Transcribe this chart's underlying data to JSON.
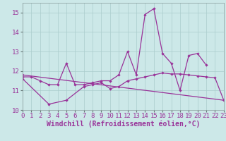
{
  "x": [
    0,
    1,
    2,
    3,
    4,
    5,
    6,
    7,
    8,
    9,
    10,
    11,
    12,
    13,
    14,
    15,
    16,
    17,
    18,
    19,
    20,
    21,
    22,
    23
  ],
  "line1_x": [
    0,
    1,
    2,
    3,
    4,
    5,
    6,
    7,
    8,
    9,
    10,
    11,
    12,
    13,
    14,
    15,
    16,
    17,
    18,
    19,
    20,
    21
  ],
  "line1_y": [
    11.7,
    11.7,
    11.5,
    11.3,
    11.3,
    12.4,
    11.3,
    11.3,
    11.4,
    11.5,
    11.5,
    11.8,
    13.0,
    11.8,
    14.9,
    15.2,
    12.9,
    12.4,
    11.0,
    12.8,
    12.9,
    12.3
  ],
  "line2_x": [
    0,
    3,
    5,
    7,
    8,
    9,
    10,
    11,
    12,
    13,
    14,
    15,
    16,
    17,
    18,
    19,
    20,
    21,
    22,
    23
  ],
  "line2_y": [
    11.6,
    10.3,
    10.5,
    11.2,
    11.3,
    11.4,
    11.1,
    11.2,
    11.5,
    11.6,
    11.7,
    11.8,
    11.9,
    11.85,
    11.85,
    11.8,
    11.75,
    11.7,
    11.65,
    10.5
  ],
  "line3_x": [
    0,
    23
  ],
  "line3_y": [
    11.8,
    10.5
  ],
  "background_color": "#cce8e8",
  "line_color": "#993399",
  "grid_color": "#aacccc",
  "xlabel": "Windchill (Refroidissement éolien,°C)",
  "xlabel_fontsize": 7,
  "tick_fontsize": 6.5,
  "ylim": [
    10,
    15.5
  ],
  "xlim": [
    0,
    23
  ],
  "yticks": [
    10,
    11,
    12,
    13,
    14,
    15
  ],
  "xticks": [
    0,
    1,
    2,
    3,
    4,
    5,
    6,
    7,
    8,
    9,
    10,
    11,
    12,
    13,
    14,
    15,
    16,
    17,
    18,
    19,
    20,
    21,
    22,
    23
  ]
}
